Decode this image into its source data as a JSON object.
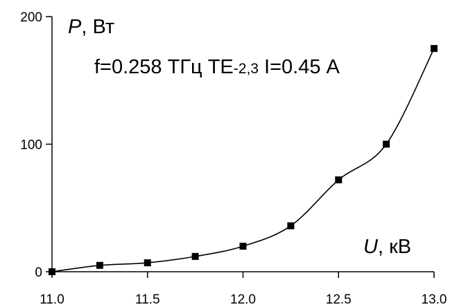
{
  "chart_data": {
    "type": "line",
    "x": [
      11.0,
      11.25,
      11.5,
      11.75,
      12.0,
      12.25,
      12.5,
      12.75,
      13.0
    ],
    "series": [
      {
        "values": [
          0,
          5,
          7,
          12,
          20,
          36,
          72,
          100,
          175
        ]
      }
    ],
    "xlim": [
      11.0,
      13.0
    ],
    "ylim": [
      0,
      200
    ],
    "xticks": [
      11.0,
      11.5,
      12.0,
      12.5,
      13.0
    ],
    "xtick_labels": [
      "11.0",
      "11.5",
      "12.0",
      "12.5",
      "13.0"
    ],
    "yticks": [
      0,
      100,
      200
    ],
    "ytick_labels": [
      "0",
      "100",
      "200"
    ],
    "xlabel": {
      "symbol": "U",
      "unit": ", кВ"
    },
    "ylabel": {
      "symbol": "P",
      "unit": ", Вт"
    },
    "annotation": {
      "main": "f=0.258 ТГц ТЕ",
      "sub": "-2,3",
      "tail": " I=0.45 А"
    },
    "grid": false,
    "marker": "square",
    "line_color": "#000000",
    "marker_color": "#000000"
  }
}
